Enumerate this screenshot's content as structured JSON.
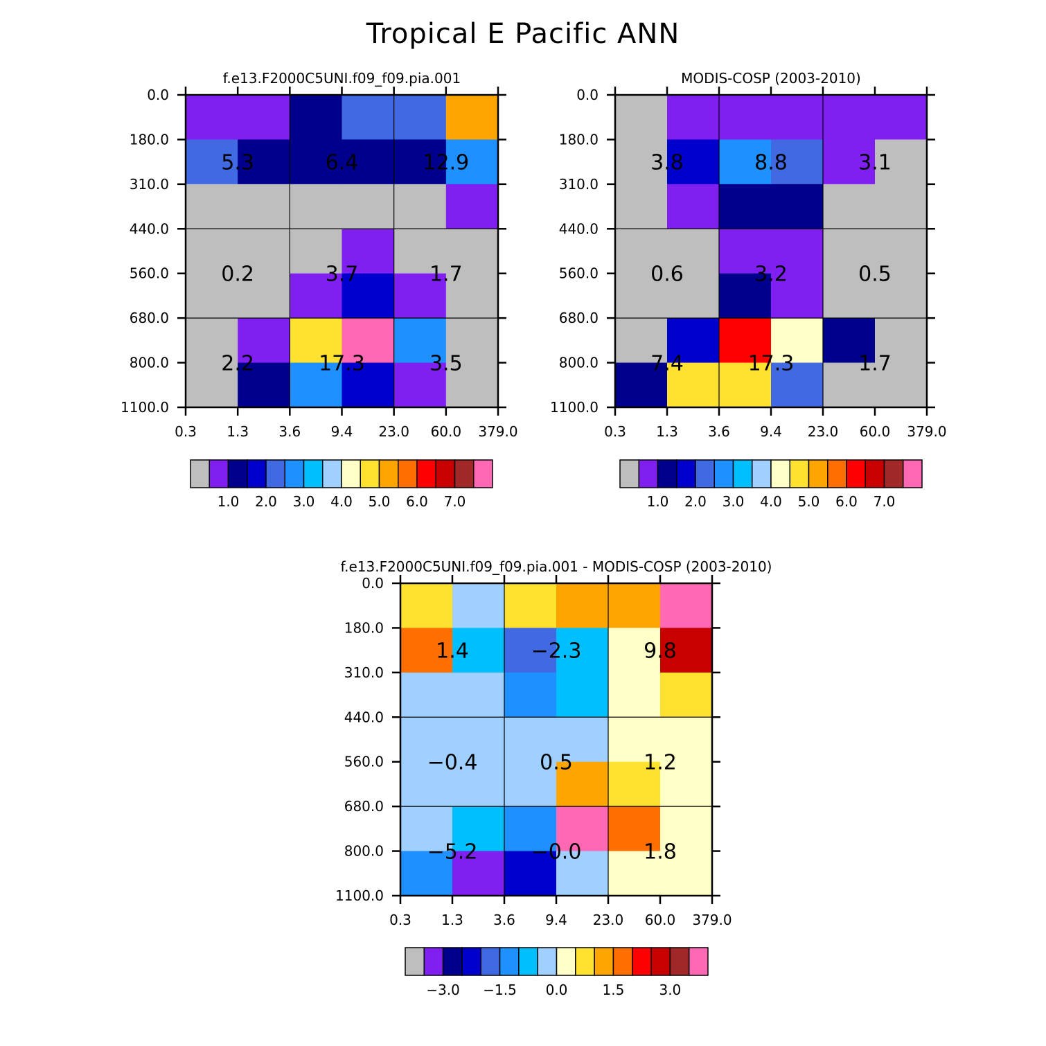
{
  "main_title": "Tropical E Pacific ANN",
  "chart_data": [
    {
      "type": "heatmap",
      "title": "f.e13.F2000C5UNI.f09_f09.pia.001",
      "x_ticks": [
        "0.3",
        "1.3",
        "3.6",
        "9.4",
        "23.0",
        "60.0",
        "379.0"
      ],
      "y_ticks": [
        "0.0",
        "180.0",
        "310.0",
        "440.0",
        "560.0",
        "680.0",
        "800.0",
        "1100.0"
      ],
      "cell_colors": [
        [
          "#8020F0",
          "#8020F0",
          "#00008C",
          "#4169E1",
          "#4169E1",
          "#FFA500"
        ],
        [
          "#4169E1",
          "#00008C",
          "#00008C",
          "#00008C",
          "#00008C",
          "#1E90FF"
        ],
        [
          "#BEBEBE",
          "#BEBEBE",
          "#BEBEBE",
          "#BEBEBE",
          "#BEBEBE",
          "#8020F0"
        ],
        [
          "#BEBEBE",
          "#BEBEBE",
          "#BEBEBE",
          "#8020F0",
          "#BEBEBE",
          "#BEBEBE"
        ],
        [
          "#BEBEBE",
          "#BEBEBE",
          "#8020F0",
          "#0000CD",
          "#8020F0",
          "#BEBEBE"
        ],
        [
          "#BEBEBE",
          "#8020F0",
          "#FFE130",
          "#FF69B4",
          "#1E90FF",
          "#BEBEBE"
        ],
        [
          "#BEBEBE",
          "#00008C",
          "#1E90FF",
          "#0000CD",
          "#8020F0",
          "#BEBEBE"
        ]
      ],
      "group_labels": [
        [
          "5.3",
          "6.4",
          "12.9"
        ],
        [
          "0.2",
          "3.7",
          "1.7"
        ],
        [
          "2.2",
          "17.3",
          "3.5"
        ]
      ],
      "colorbar": {
        "colors": [
          "#BEBEBE",
          "#8020F0",
          "#00008C",
          "#0000CD",
          "#4169E1",
          "#1E90FF",
          "#00BFFF",
          "#A0D0FF",
          "#FFFFC8",
          "#FFE130",
          "#FFA500",
          "#FF6E00",
          "#FF0000",
          "#C80000",
          "#A02828",
          "#FF69B4"
        ],
        "tick_labels": [
          "1.0",
          "2.0",
          "3.0",
          "4.0",
          "5.0",
          "6.0",
          "7.0"
        ],
        "tick_boundaries": [
          2,
          4,
          6,
          8,
          10,
          12,
          14
        ]
      }
    },
    {
      "type": "heatmap",
      "title": "MODIS-COSP (2003-2010)",
      "x_ticks": [
        "0.3",
        "1.3",
        "3.6",
        "9.4",
        "23.0",
        "60.0",
        "379.0"
      ],
      "y_ticks": [
        "0.0",
        "180.0",
        "310.0",
        "440.0",
        "560.0",
        "680.0",
        "800.0",
        "1100.0"
      ],
      "cell_colors": [
        [
          "#BEBEBE",
          "#8020F0",
          "#8020F0",
          "#8020F0",
          "#8020F0",
          "#8020F0"
        ],
        [
          "#BEBEBE",
          "#0000CD",
          "#1E90FF",
          "#4169E1",
          "#8020F0",
          "#BEBEBE"
        ],
        [
          "#BEBEBE",
          "#8020F0",
          "#00008C",
          "#00008C",
          "#BEBEBE",
          "#BEBEBE"
        ],
        [
          "#BEBEBE",
          "#BEBEBE",
          "#8020F0",
          "#8020F0",
          "#BEBEBE",
          "#BEBEBE"
        ],
        [
          "#BEBEBE",
          "#BEBEBE",
          "#00008C",
          "#8020F0",
          "#BEBEBE",
          "#BEBEBE"
        ],
        [
          "#BEBEBE",
          "#0000CD",
          "#FF0000",
          "#FFFFC8",
          "#00008C",
          "#BEBEBE"
        ],
        [
          "#00008C",
          "#FFE130",
          "#FFE130",
          "#4169E1",
          "#BEBEBE",
          "#BEBEBE"
        ]
      ],
      "group_labels": [
        [
          "3.8",
          "8.8",
          "3.1"
        ],
        [
          "0.6",
          "3.2",
          "0.5"
        ],
        [
          "7.4",
          "17.3",
          "1.7"
        ]
      ],
      "colorbar": {
        "colors": [
          "#BEBEBE",
          "#8020F0",
          "#00008C",
          "#0000CD",
          "#4169E1",
          "#1E90FF",
          "#00BFFF",
          "#A0D0FF",
          "#FFFFC8",
          "#FFE130",
          "#FFA500",
          "#FF6E00",
          "#FF0000",
          "#C80000",
          "#A02828",
          "#FF69B4"
        ],
        "tick_labels": [
          "1.0",
          "2.0",
          "3.0",
          "4.0",
          "5.0",
          "6.0",
          "7.0"
        ],
        "tick_boundaries": [
          2,
          4,
          6,
          8,
          10,
          12,
          14
        ]
      }
    },
    {
      "type": "heatmap",
      "title": "f.e13.F2000C5UNI.f09_f09.pia.001 - MODIS-COSP (2003-2010)",
      "x_ticks": [
        "0.3",
        "1.3",
        "3.6",
        "9.4",
        "23.0",
        "60.0",
        "379.0"
      ],
      "y_ticks": [
        "0.0",
        "180.0",
        "310.0",
        "440.0",
        "560.0",
        "680.0",
        "800.0",
        "1100.0"
      ],
      "cell_colors": [
        [
          "#FFE130",
          "#A0D0FF",
          "#FFE130",
          "#FFA500",
          "#FFA500",
          "#FF69B4"
        ],
        [
          "#FF6E00",
          "#00BFFF",
          "#4169E1",
          "#00BFFF",
          "#FFFFC8",
          "#C80000"
        ],
        [
          "#A0D0FF",
          "#A0D0FF",
          "#1E90FF",
          "#00BFFF",
          "#FFFFC8",
          "#FFE130"
        ],
        [
          "#A0D0FF",
          "#A0D0FF",
          "#A0D0FF",
          "#A0D0FF",
          "#FFFFC8",
          "#FFFFC8"
        ],
        [
          "#A0D0FF",
          "#A0D0FF",
          "#A0D0FF",
          "#FFA500",
          "#FFE130",
          "#FFFFC8"
        ],
        [
          "#A0D0FF",
          "#00BFFF",
          "#1E90FF",
          "#FF69B4",
          "#FF6E00",
          "#FFFFC8"
        ],
        [
          "#1E90FF",
          "#8020F0",
          "#0000CD",
          "#A0D0FF",
          "#FFFFC8",
          "#FFFFC8"
        ]
      ],
      "group_labels": [
        [
          "1.4",
          "-2.3",
          "9.8"
        ],
        [
          "-0.4",
          "0.5",
          "1.2"
        ],
        [
          "-5.2",
          "-0.0",
          "1.8"
        ]
      ],
      "colorbar": {
        "colors": [
          "#BEBEBE",
          "#8020F0",
          "#00008C",
          "#0000CD",
          "#4169E1",
          "#1E90FF",
          "#00BFFF",
          "#A0D0FF",
          "#FFFFC8",
          "#FFE130",
          "#FFA500",
          "#FF6E00",
          "#FF0000",
          "#C80000",
          "#A02828",
          "#FF69B4"
        ],
        "tick_labels": [
          "−3.0",
          "−1.5",
          "0.0",
          "1.5",
          "3.0"
        ],
        "tick_boundaries": [
          2,
          5,
          8,
          11,
          14
        ]
      }
    }
  ]
}
